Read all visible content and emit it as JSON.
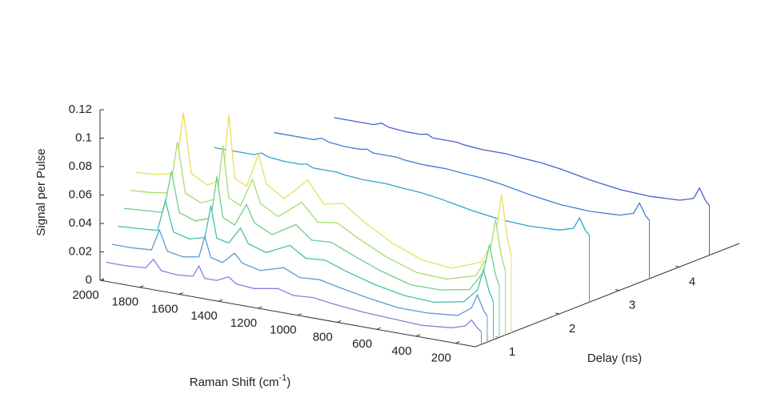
{
  "chart_data": {
    "type": "waterfall3d",
    "zlabel": "Signal per Pulse",
    "xlabel": [
      "Raman Shift (cm",
      "-1",
      ")"
    ],
    "ylabel": "Delay (ns)",
    "x": [
      2000,
      1900,
      1800,
      1760,
      1720,
      1640,
      1560,
      1530,
      1500,
      1440,
      1380,
      1340,
      1250,
      1130,
      1050,
      950,
      850,
      700,
      550,
      400,
      250,
      180,
      150,
      120,
      100
    ],
    "xlim": [
      2000,
      100
    ],
    "xticks": [
      2000,
      1800,
      1600,
      1400,
      1200,
      1000,
      800,
      600,
      400,
      200
    ],
    "ylim": [
      0.6,
      5
    ],
    "yticks": [
      1,
      2,
      3,
      4
    ],
    "zlim": [
      0,
      0.12
    ],
    "zticks": [
      0,
      0.02,
      0.04,
      0.06,
      0.08,
      0.1,
      0.12
    ],
    "series": [
      {
        "delay": 4.5,
        "color": "#4a5fd0",
        "values": [
          0.05,
          0.05,
          0.05,
          0.052,
          0.05,
          0.049,
          0.049,
          0.05,
          0.048,
          0.048,
          0.048,
          0.047,
          0.046,
          0.046,
          0.045,
          0.044,
          0.042,
          0.038,
          0.035,
          0.034,
          0.035,
          0.038,
          0.046,
          0.038,
          0.035
        ]
      },
      {
        "delay": 3.5,
        "color": "#3f7fd6",
        "values": [
          0.056,
          0.056,
          0.056,
          0.058,
          0.056,
          0.055,
          0.055,
          0.056,
          0.054,
          0.054,
          0.054,
          0.053,
          0.052,
          0.052,
          0.051,
          0.05,
          0.048,
          0.044,
          0.041,
          0.04,
          0.041,
          0.044,
          0.052,
          0.044,
          0.041
        ]
      },
      {
        "delay": 2.5,
        "color": "#33a0d0",
        "values": [
          0.062,
          0.062,
          0.062,
          0.064,
          0.062,
          0.061,
          0.061,
          0.062,
          0.06,
          0.06,
          0.06,
          0.059,
          0.058,
          0.058,
          0.057,
          0.056,
          0.054,
          0.05,
          0.047,
          0.046,
          0.047,
          0.05,
          0.058,
          0.05,
          0.047
        ]
      },
      {
        "delay": 1.2,
        "color": "#e8e05a",
        "values": [
          0.066,
          0.067,
          0.07,
          0.114,
          0.072,
          0.066,
          0.072,
          0.118,
          0.074,
          0.07,
          0.094,
          0.074,
          0.066,
          0.082,
          0.067,
          0.07,
          0.06,
          0.048,
          0.04,
          0.038,
          0.046,
          0.066,
          0.096,
          0.066,
          0.054
        ]
      },
      {
        "delay": 1.1,
        "color": "#a8dc70",
        "values": [
          0.055,
          0.056,
          0.058,
          0.095,
          0.06,
          0.055,
          0.06,
          0.098,
          0.062,
          0.058,
          0.078,
          0.062,
          0.055,
          0.068,
          0.056,
          0.058,
          0.05,
          0.04,
          0.033,
          0.032,
          0.038,
          0.055,
          0.08,
          0.055,
          0.045
        ]
      },
      {
        "delay": 1.0,
        "color": "#6ccf8a",
        "values": [
          0.044,
          0.045,
          0.046,
          0.076,
          0.048,
          0.044,
          0.048,
          0.078,
          0.05,
          0.046,
          0.062,
          0.05,
          0.044,
          0.054,
          0.045,
          0.046,
          0.04,
          0.032,
          0.026,
          0.026,
          0.03,
          0.044,
          0.064,
          0.044,
          0.036
        ]
      },
      {
        "delay": 0.9,
        "color": "#45bfa8",
        "values": [
          0.033,
          0.034,
          0.035,
          0.057,
          0.036,
          0.033,
          0.036,
          0.059,
          0.037,
          0.035,
          0.047,
          0.037,
          0.033,
          0.041,
          0.034,
          0.035,
          0.03,
          0.024,
          0.02,
          0.019,
          0.023,
          0.033,
          0.048,
          0.033,
          0.027
        ]
      },
      {
        "delay": 0.8,
        "color": "#5a9ad8",
        "values": [
          0.022,
          0.022,
          0.023,
          0.038,
          0.024,
          0.022,
          0.024,
          0.039,
          0.025,
          0.023,
          0.031,
          0.025,
          0.022,
          0.027,
          0.022,
          0.023,
          0.02,
          0.016,
          0.013,
          0.013,
          0.015,
          0.022,
          0.032,
          0.022,
          0.018
        ]
      },
      {
        "delay": 0.7,
        "color": "#8a7ee0",
        "values": [
          0.011,
          0.011,
          0.012,
          0.019,
          0.012,
          0.011,
          0.012,
          0.02,
          0.012,
          0.012,
          0.016,
          0.012,
          0.011,
          0.014,
          0.011,
          0.012,
          0.01,
          0.008,
          0.007,
          0.006,
          0.008,
          0.011,
          0.016,
          0.011,
          0.009
        ]
      }
    ]
  }
}
